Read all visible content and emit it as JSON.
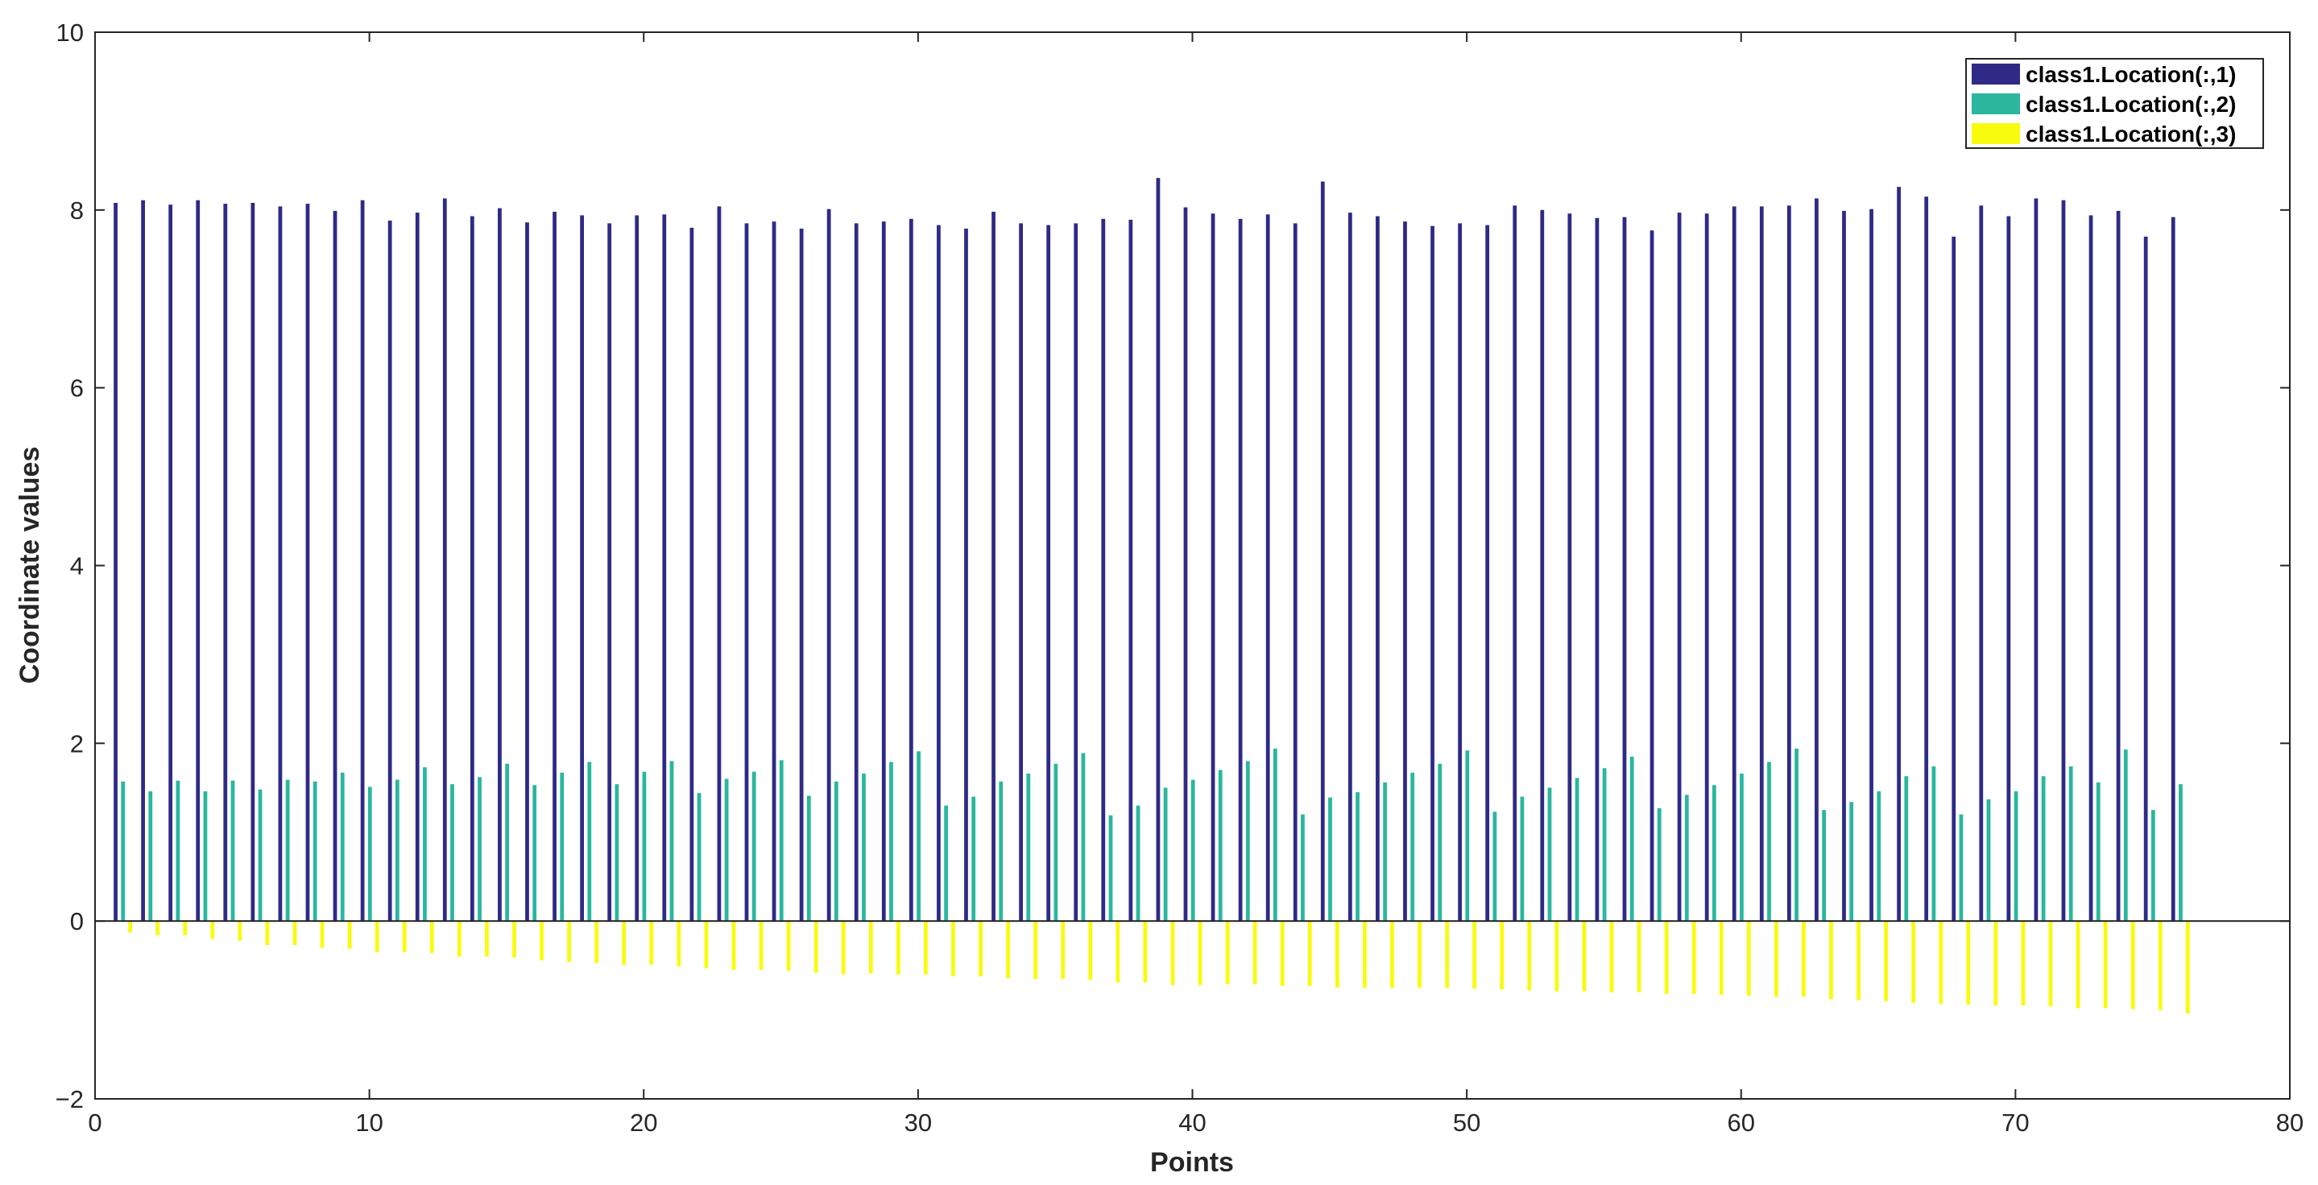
{
  "chart_data": {
    "type": "bar",
    "xlabel": "Points",
    "ylabel": "Coordinate values",
    "xlim": [
      0,
      80
    ],
    "ylim": [
      -2,
      10
    ],
    "xticks": [
      0,
      10,
      20,
      30,
      40,
      50,
      60,
      70,
      80
    ],
    "yticks": [
      -2,
      0,
      2,
      4,
      6,
      8,
      10
    ],
    "grid": false,
    "legend_position": "top-right",
    "x": [
      1,
      2,
      3,
      4,
      5,
      6,
      7,
      8,
      9,
      10,
      11,
      12,
      13,
      14,
      15,
      16,
      17,
      18,
      19,
      20,
      21,
      22,
      23,
      24,
      25,
      26,
      27,
      28,
      29,
      30,
      31,
      32,
      33,
      34,
      35,
      36,
      37,
      38,
      39,
      40,
      41,
      42,
      43,
      44,
      45,
      46,
      47,
      48,
      49,
      50,
      51,
      52,
      53,
      54,
      55,
      56,
      57,
      58,
      59,
      60,
      61,
      62,
      63,
      64,
      65,
      66,
      67,
      68,
      69,
      70,
      71,
      72,
      73,
      74,
      75,
      76
    ],
    "series": [
      {
        "name": "class1.Location(:,1)",
        "color": "#2e2a86",
        "values": [
          8.08,
          8.11,
          8.06,
          8.11,
          8.07,
          8.08,
          8.04,
          8.07,
          7.99,
          8.11,
          7.88,
          7.97,
          8.13,
          7.93,
          8.02,
          7.86,
          7.98,
          7.94,
          7.85,
          7.94,
          7.95,
          7.8,
          8.04,
          7.85,
          7.87,
          7.79,
          8.01,
          7.85,
          7.87,
          7.9,
          7.83,
          7.79,
          7.98,
          7.85,
          7.83,
          7.85,
          7.9,
          7.89,
          8.36,
          8.03,
          7.96,
          7.9,
          7.95,
          7.85,
          8.32,
          7.97,
          7.93,
          7.87,
          7.82,
          7.85,
          7.83,
          8.05,
          8.0,
          7.96,
          7.91,
          7.92,
          7.77,
          7.97,
          7.96,
          8.04,
          8.04,
          8.05,
          8.13,
          7.99,
          8.01,
          8.26,
          8.15,
          7.7,
          8.05,
          7.93,
          8.13,
          8.11,
          7.94,
          7.99,
          7.7,
          7.92
        ]
      },
      {
        "name": "class1.Location(:,2)",
        "color": "#2ab79d",
        "values": [
          1.57,
          1.46,
          1.58,
          1.46,
          1.58,
          1.48,
          1.59,
          1.57,
          1.67,
          1.51,
          1.59,
          1.73,
          1.54,
          1.62,
          1.77,
          1.53,
          1.67,
          1.79,
          1.54,
          1.68,
          1.8,
          1.44,
          1.6,
          1.68,
          1.81,
          1.41,
          1.57,
          1.66,
          1.79,
          1.91,
          1.3,
          1.4,
          1.57,
          1.66,
          1.77,
          1.89,
          1.19,
          1.3,
          1.5,
          1.59,
          1.7,
          1.8,
          1.94,
          1.2,
          1.39,
          1.45,
          1.56,
          1.67,
          1.77,
          1.92,
          1.23,
          1.4,
          1.5,
          1.61,
          1.72,
          1.85,
          1.27,
          1.42,
          1.53,
          1.66,
          1.79,
          1.94,
          1.25,
          1.34,
          1.46,
          1.63,
          1.74,
          1.2,
          1.37,
          1.46,
          1.63,
          1.74,
          1.56,
          1.93,
          1.25,
          1.54
        ]
      },
      {
        "name": "class1.Location(:,3)",
        "color": "#f9fb0e",
        "values": [
          -0.13,
          -0.16,
          -0.16,
          -0.2,
          -0.22,
          -0.27,
          -0.27,
          -0.3,
          -0.31,
          -0.35,
          -0.35,
          -0.36,
          -0.4,
          -0.4,
          -0.41,
          -0.44,
          -0.46,
          -0.47,
          -0.49,
          -0.49,
          -0.51,
          -0.53,
          -0.55,
          -0.55,
          -0.56,
          -0.58,
          -0.6,
          -0.59,
          -0.6,
          -0.6,
          -0.62,
          -0.62,
          -0.64,
          -0.65,
          -0.65,
          -0.66,
          -0.69,
          -0.69,
          -0.72,
          -0.72,
          -0.71,
          -0.71,
          -0.73,
          -0.73,
          -0.75,
          -0.75,
          -0.75,
          -0.75,
          -0.75,
          -0.76,
          -0.77,
          -0.78,
          -0.79,
          -0.79,
          -0.8,
          -0.8,
          -0.82,
          -0.82,
          -0.83,
          -0.84,
          -0.85,
          -0.85,
          -0.88,
          -0.89,
          -0.9,
          -0.92,
          -0.93,
          -0.94,
          -0.95,
          -0.95,
          -0.96,
          -0.98,
          -0.98,
          -0.99,
          -1.0,
          -1.04
        ]
      }
    ]
  }
}
